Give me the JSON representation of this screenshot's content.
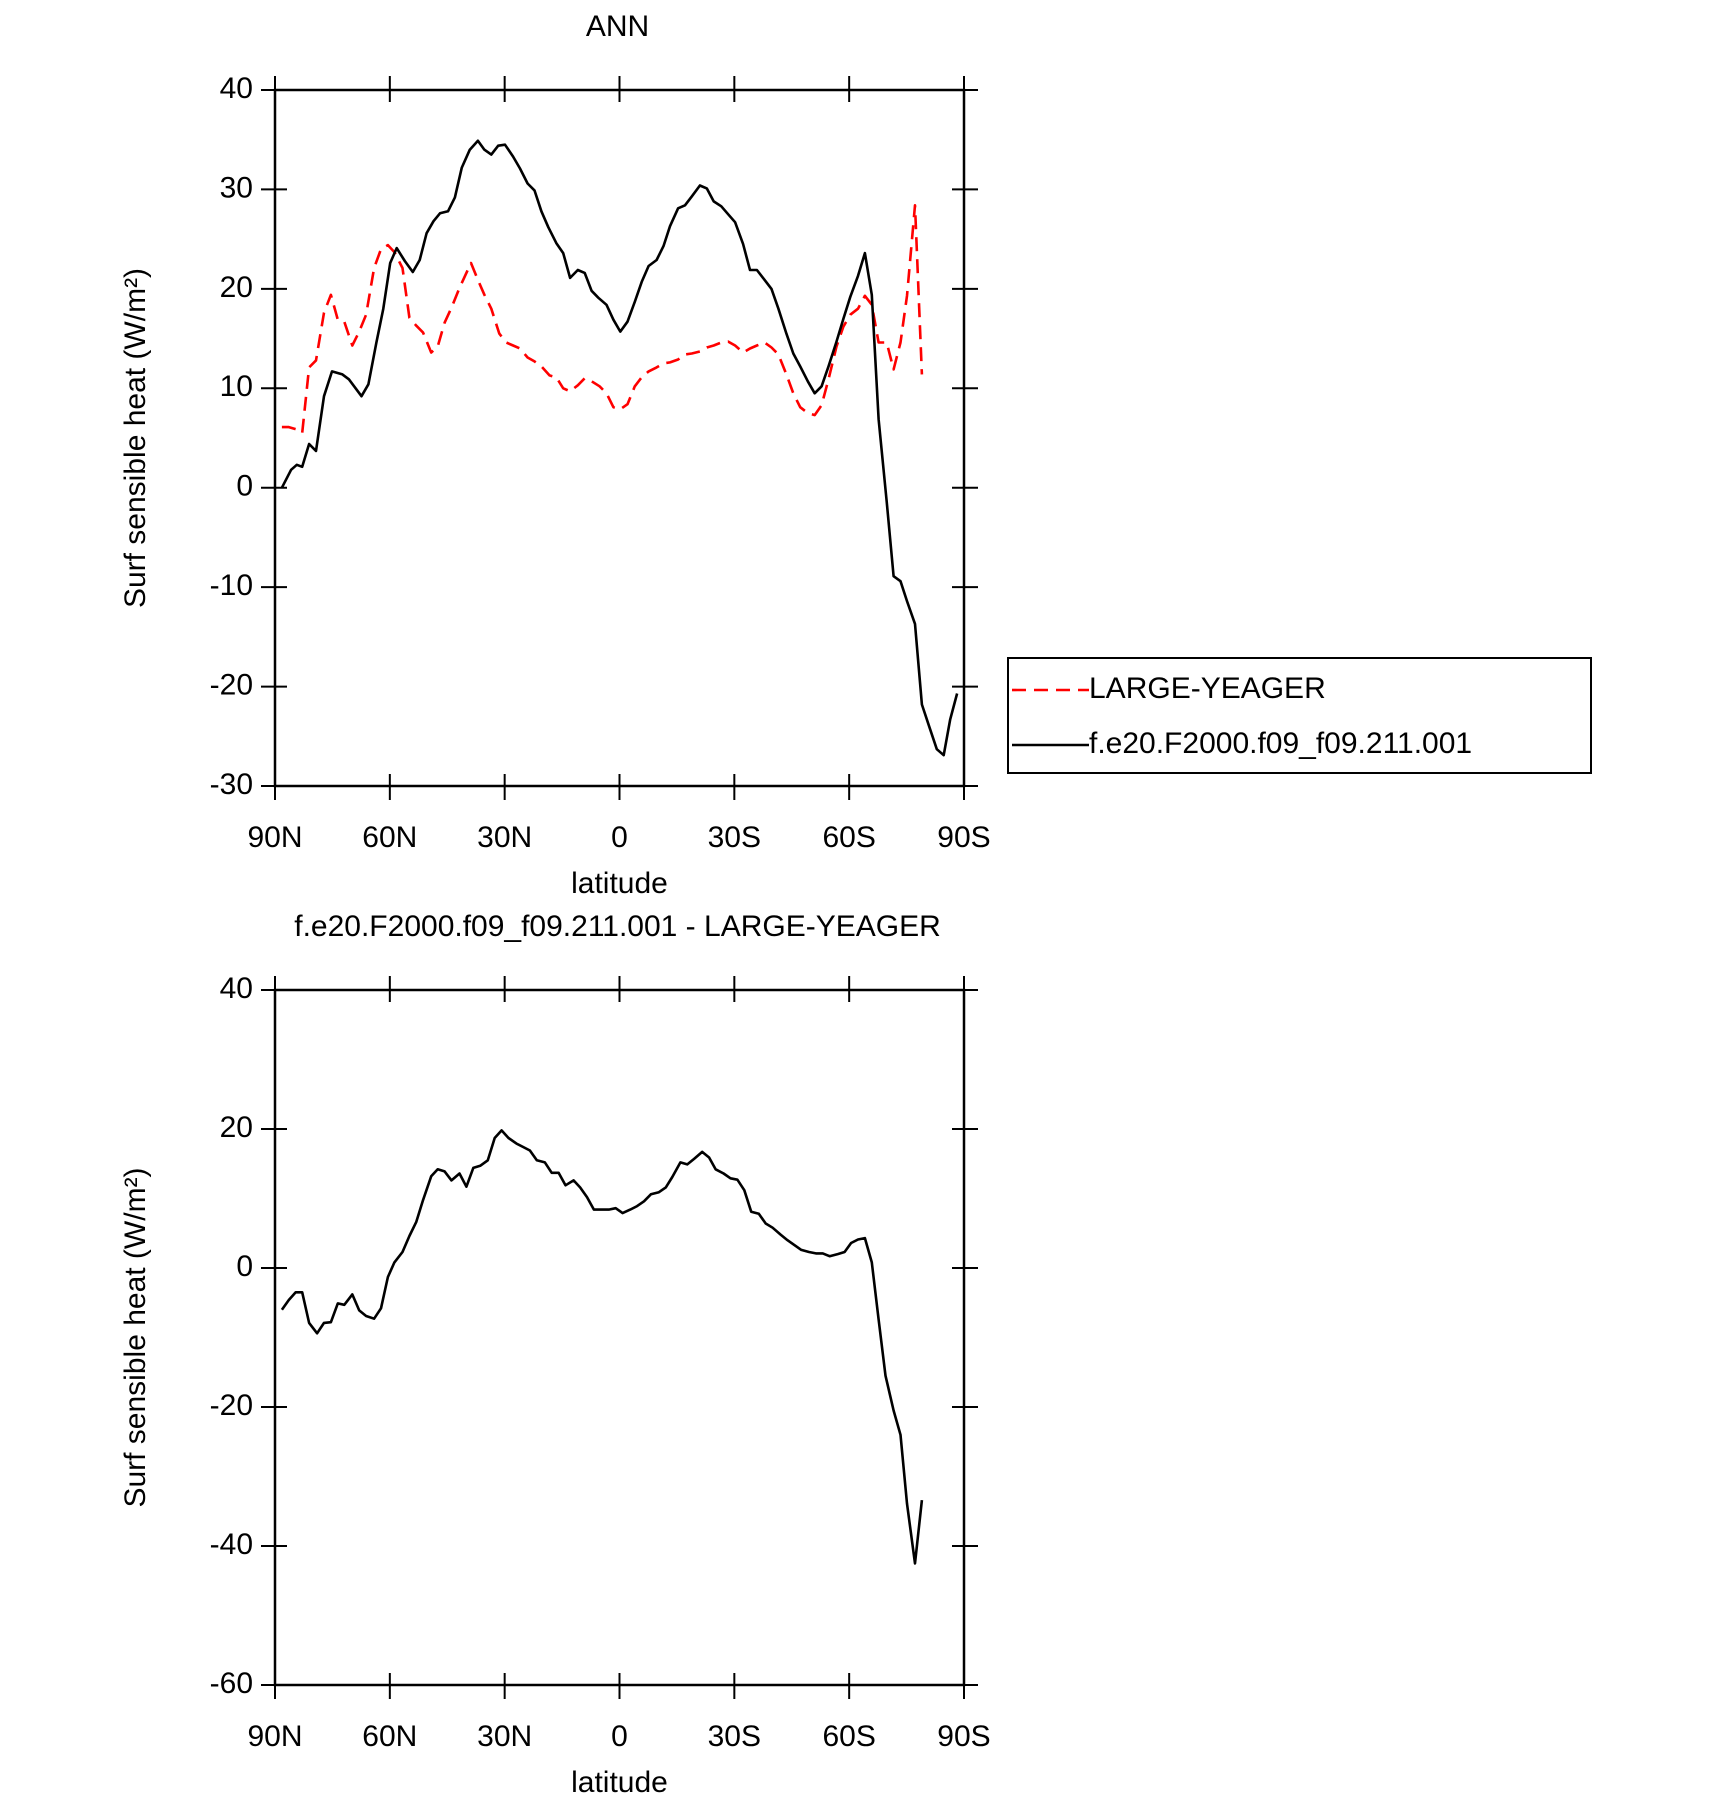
{
  "chart_data": [
    {
      "type": "line",
      "title": "ANN",
      "xlabel": "latitude",
      "ylabel": "Surf sensible heat (W/m²)",
      "xlim": [
        90,
        -90
      ],
      "xticks": [
        {
          "value": 90,
          "label": "90N"
        },
        {
          "value": 60,
          "label": "60N"
        },
        {
          "value": 30,
          "label": "30N"
        },
        0,
        {
          "value": -30,
          "label": "30S"
        },
        {
          "value": -60,
          "label": "60S"
        },
        {
          "value": -90,
          "label": "90S"
        }
      ],
      "ylim": [
        -30,
        40
      ],
      "yticks": [
        -30,
        -20,
        -10,
        0,
        10,
        20,
        30,
        40
      ],
      "legend": "outside-right",
      "series": [
        {
          "name": "LARGE-YEAGER",
          "color": "#ff0000",
          "linestyle": "dashed",
          "x": [
            88.2,
            86.4,
            84.6,
            82.9,
            81.1,
            79.3,
            77.2,
            75.4,
            73.6,
            71.9,
            69.8,
            68.0,
            66.2,
            64.1,
            62.3,
            60.5,
            58.8,
            56.7,
            54.9,
            53.1,
            51.3,
            49.2,
            47.5,
            45.7,
            43.9,
            41.8,
            38.8,
            37.0,
            35.3,
            33.5,
            31.4,
            29.6,
            27.8,
            26.0,
            24.0,
            22.2,
            20.4,
            18.3,
            16.5,
            14.7,
            12.9,
            10.9,
            9.1,
            7.3,
            5.2,
            3.4,
            1.6,
            -0.2,
            -2.1,
            -4.0,
            -5.8,
            -7.6,
            -9.7,
            -11.5,
            -13.2,
            -15.3,
            -17.1,
            -18.9,
            -21.0,
            -22.8,
            -24.6,
            -26.6,
            -28.4,
            -30.2,
            -32.3,
            -34.1,
            -35.9,
            -37.9,
            -39.7,
            -41.5,
            -43.6,
            -45.4,
            -47.2,
            -49.2,
            -51.0,
            -52.8,
            -54.6,
            -56.7,
            -58.5,
            -60.3,
            -62.3,
            -64.1,
            -65.9,
            -67.7,
            -69.8,
            -71.6,
            -73.4,
            -75.1,
            -77.2,
            -79.0
          ],
          "values": [
            6.1,
            6.1,
            5.9,
            5.5,
            12.1,
            12.8,
            17.6,
            19.4,
            16.9,
            16.7,
            14.3,
            15.7,
            17.4,
            22.1,
            24.0,
            24.4,
            23.7,
            22.1,
            17.1,
            16.3,
            15.6,
            13.6,
            14.2,
            16.6,
            18.1,
            20.1,
            22.6,
            20.9,
            19.4,
            18.0,
            15.5,
            14.6,
            14.3,
            14.0,
            13.1,
            12.7,
            12.2,
            11.3,
            11.1,
            10.0,
            9.7,
            10.3,
            11.0,
            10.7,
            10.2,
            9.5,
            8.1,
            7.9,
            8.4,
            10.2,
            11.1,
            11.7,
            12.1,
            12.5,
            12.6,
            12.9,
            13.4,
            13.5,
            13.7,
            14.1,
            14.3,
            14.6,
            14.7,
            14.3,
            13.6,
            14.0,
            14.3,
            14.6,
            14.1,
            13.4,
            11.4,
            9.5,
            8.1,
            7.5,
            7.3,
            8.3,
            10.9,
            14.2,
            16.2,
            17.4,
            18.0,
            19.3,
            18.4,
            14.6,
            14.6,
            11.9,
            14.6,
            19.3,
            28.4,
            11.4
          ]
        },
        {
          "name": "f.e20.F2000.f09_f09.211.001",
          "color": "#000000",
          "linestyle": "solid",
          "x": [
            88.2,
            85.8,
            84.3,
            82.9,
            81.1,
            79.3,
            77.2,
            75.1,
            72.4,
            70.7,
            67.4,
            65.6,
            63.5,
            61.7,
            59.9,
            58.2,
            56.1,
            54.0,
            52.2,
            50.4,
            48.6,
            46.9,
            44.8,
            43.0,
            41.2,
            39.1,
            37.0,
            35.3,
            33.5,
            31.7,
            29.9,
            27.8,
            26.0,
            24.0,
            22.2,
            20.4,
            18.6,
            16.5,
            14.7,
            12.9,
            10.9,
            9.1,
            7.3,
            5.5,
            3.4,
            1.6,
            -0.2,
            -2.1,
            -4.0,
            -5.8,
            -7.6,
            -9.7,
            -11.5,
            -13.2,
            -15.3,
            -17.1,
            -18.9,
            -21.0,
            -22.8,
            -24.6,
            -26.6,
            -28.4,
            -30.2,
            -32.3,
            -34.1,
            -35.9,
            -37.9,
            -39.7,
            -41.5,
            -43.6,
            -45.4,
            -47.2,
            -49.2,
            -51.0,
            -52.8,
            -54.6,
            -56.7,
            -58.5,
            -60.3,
            -62.3,
            -64.1,
            -65.9,
            -67.7,
            -69.8,
            -71.6,
            -73.4,
            -75.1,
            -77.2,
            -79.0,
            -80.8,
            -82.9,
            -84.7,
            -86.4,
            -88.2
          ],
          "values": [
            0,
            1.8,
            2.3,
            2.1,
            4.4,
            3.7,
            9.2,
            11.7,
            11.4,
            10.9,
            9.2,
            10.4,
            14.6,
            18.0,
            22.6,
            24.1,
            22.8,
            21.7,
            22.9,
            25.6,
            26.8,
            27.6,
            27.8,
            29.2,
            32.2,
            34.0,
            34.9,
            34.0,
            33.5,
            34.4,
            34.5,
            33.3,
            32.1,
            30.6,
            29.9,
            27.8,
            26.2,
            24.6,
            23.6,
            21.1,
            21.9,
            21.6,
            19.8,
            19.1,
            18.4,
            16.9,
            15.7,
            16.7,
            18.7,
            20.7,
            22.3,
            22.9,
            24.3,
            26.3,
            28.1,
            28.4,
            29.3,
            30.4,
            30.1,
            28.8,
            28.3,
            27.5,
            26.7,
            24.5,
            21.9,
            21.9,
            20.9,
            20.0,
            18.0,
            15.5,
            13.5,
            12.2,
            10.7,
            9.5,
            10.2,
            12.2,
            14.7,
            17.0,
            19.2,
            21.3,
            23.6,
            19.4,
            6.9,
            -1.4,
            -8.9,
            -9.4,
            -11.4,
            -13.7,
            -21.8,
            -23.9,
            -26.3,
            -26.9,
            -23.3,
            -20.7
          ]
        }
      ]
    },
    {
      "type": "line",
      "title": "f.e20.F2000.f09_f09.211.001 - LARGE-YEAGER",
      "xlabel": "latitude",
      "ylabel": "Surf sensible heat (W/m²)",
      "xlim": [
        90,
        -90
      ],
      "xticks": [
        {
          "value": 90,
          "label": "90N"
        },
        {
          "value": 60,
          "label": "60N"
        },
        {
          "value": 30,
          "label": "30N"
        },
        0,
        {
          "value": -30,
          "label": "30S"
        },
        {
          "value": -60,
          "label": "60S"
        },
        {
          "value": -90,
          "label": "90S"
        }
      ],
      "ylim": [
        -60,
        40
      ],
      "yticks": [
        -60,
        -40,
        -20,
        0,
        20,
        40
      ],
      "series": [
        {
          "color": "#000000",
          "linestyle": "solid",
          "x": [
            88.2,
            86.4,
            84.6,
            82.9,
            81.1,
            79.0,
            77.2,
            75.4,
            73.6,
            71.9,
            69.8,
            68.0,
            66.2,
            64.1,
            62.3,
            60.5,
            58.8,
            56.7,
            54.9,
            53.1,
            51.3,
            49.2,
            47.5,
            45.7,
            43.9,
            41.8,
            40.0,
            38.2,
            36.4,
            34.4,
            32.6,
            30.8,
            29.0,
            26.9,
            25.1,
            23.4,
            21.6,
            19.5,
            17.7,
            15.9,
            14.1,
            12.0,
            10.3,
            8.5,
            6.7,
            4.6,
            2.8,
            1.0,
            -0.8,
            -2.8,
            -4.6,
            -6.4,
            -8.2,
            -10.3,
            -12.1,
            -13.8,
            -15.9,
            -17.7,
            -19.5,
            -21.6,
            -23.4,
            -25.1,
            -27.2,
            -29.0,
            -30.8,
            -32.6,
            -34.4,
            -36.4,
            -38.2,
            -40.0,
            -42.1,
            -43.9,
            -45.7,
            -47.5,
            -49.5,
            -51.3,
            -53.1,
            -54.9,
            -57.0,
            -58.8,
            -60.5,
            -62.3,
            -64.1,
            -65.9,
            -67.7,
            -69.5,
            -71.6,
            -73.4,
            -75.1,
            -77.2,
            -79.0
          ],
          "values": [
            -6.0,
            -4.6,
            -3.5,
            -3.5,
            -7.9,
            -9.4,
            -7.9,
            -7.8,
            -5.1,
            -5.3,
            -3.8,
            -6.1,
            -6.9,
            -7.3,
            -5.8,
            -1.3,
            0.8,
            2.3,
            4.6,
            6.6,
            9.8,
            13.2,
            14.2,
            13.9,
            12.6,
            13.6,
            11.7,
            14.4,
            14.7,
            15.5,
            18.7,
            19.8,
            18.7,
            17.9,
            17.4,
            16.9,
            15.5,
            15.2,
            13.7,
            13.7,
            11.9,
            12.6,
            11.6,
            10.2,
            8.4,
            8.4,
            8.4,
            8.6,
            7.9,
            8.4,
            8.9,
            9.6,
            10.6,
            10.9,
            11.6,
            13.1,
            15.2,
            14.9,
            15.7,
            16.7,
            15.9,
            14.2,
            13.6,
            12.9,
            12.7,
            11.2,
            8.1,
            7.8,
            6.4,
            5.8,
            4.8,
            4.0,
            3.3,
            2.6,
            2.3,
            2.1,
            2.1,
            1.7,
            2.0,
            2.3,
            3.6,
            4.1,
            4.3,
            0.8,
            -7.4,
            -15.5,
            -20.5,
            -24.0,
            -33.9,
            -42.5,
            -33.4
          ]
        }
      ]
    }
  ]
}
